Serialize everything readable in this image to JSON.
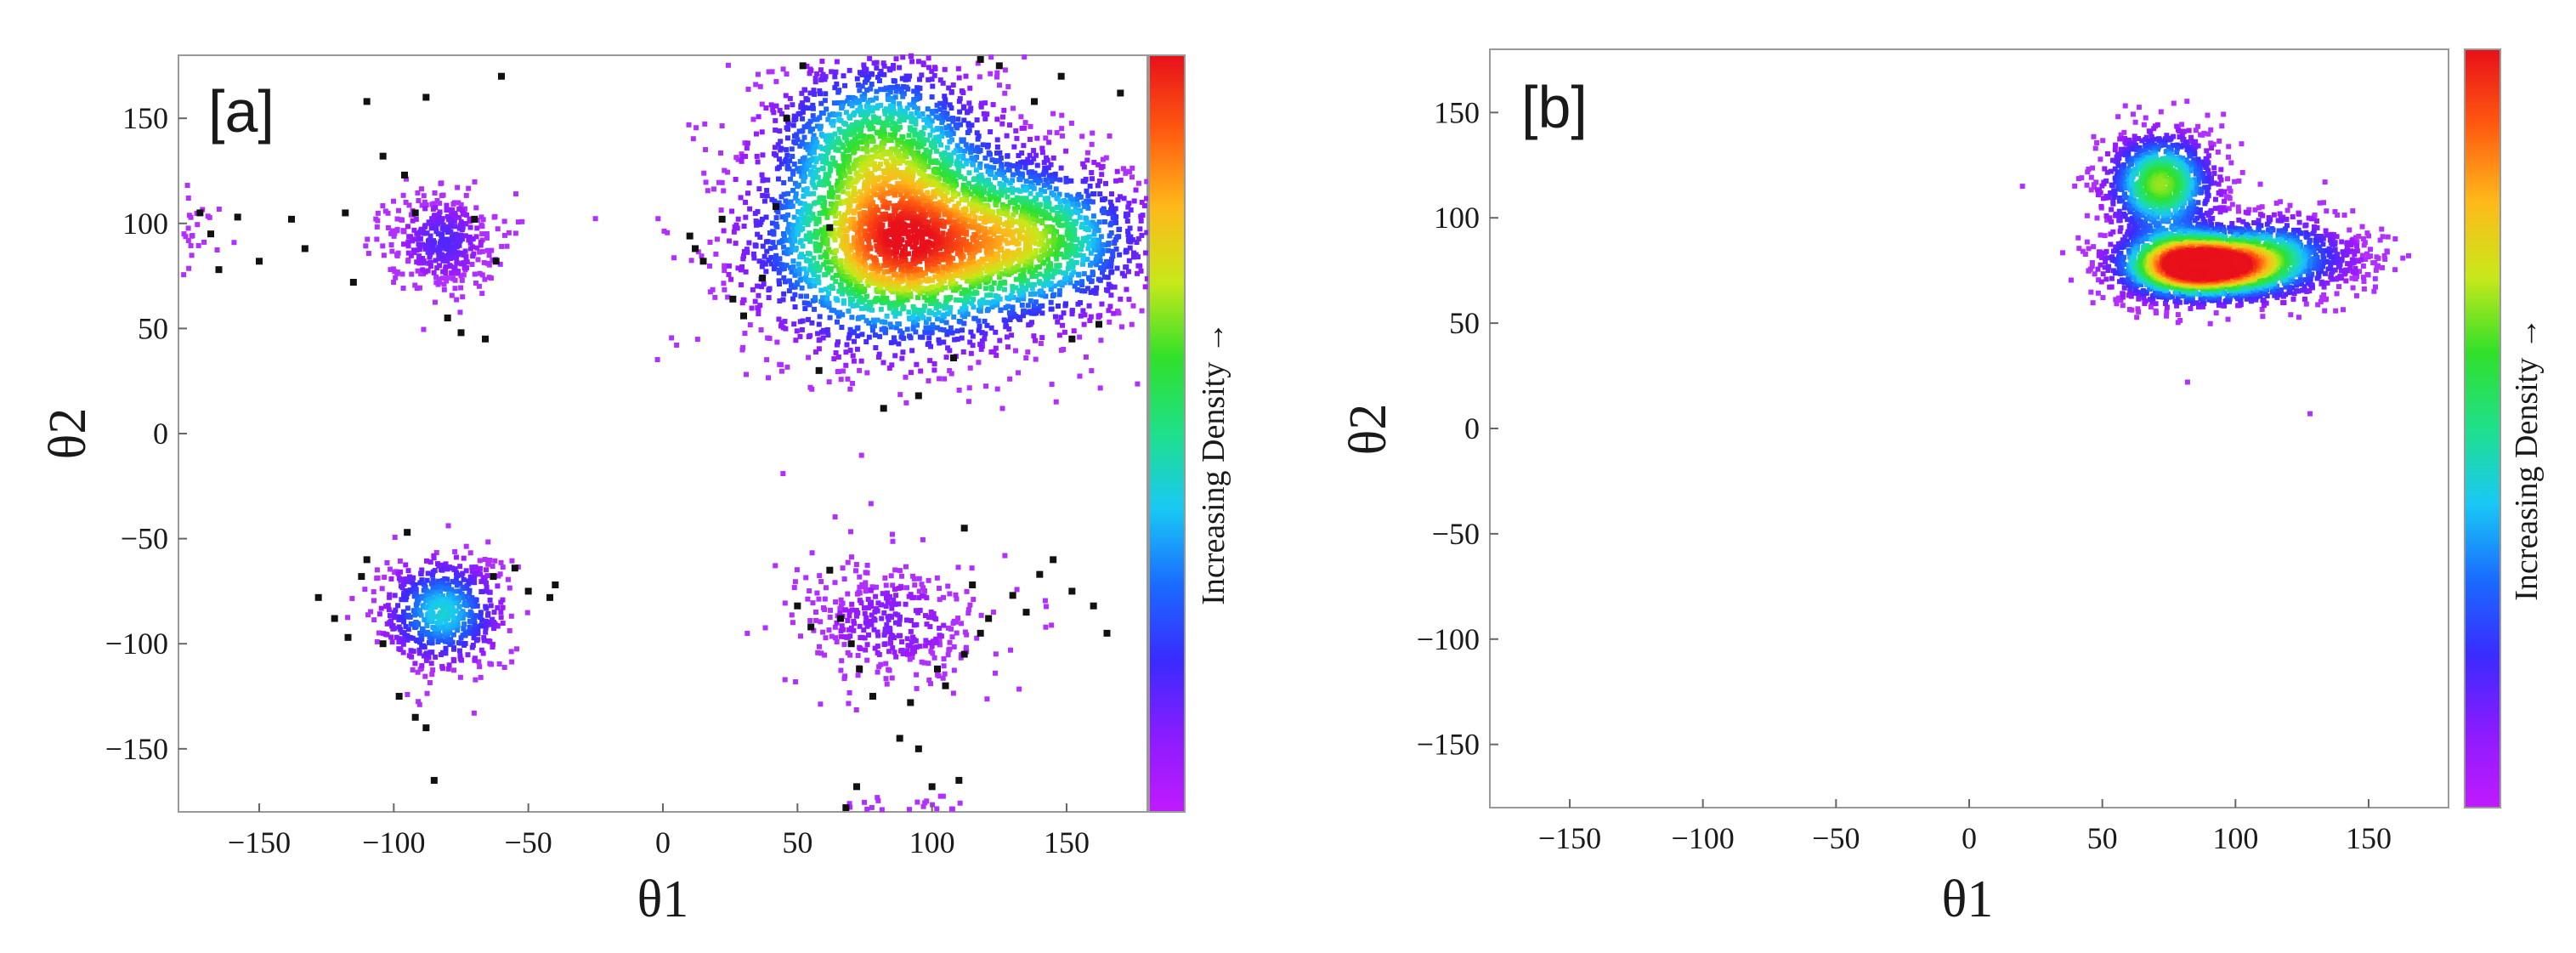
{
  "chart_data": [
    {
      "type": "scatter",
      "panel_label": "[a]",
      "xlabel": "θ1",
      "ylabel": "θ2",
      "xlim": [
        -180,
        180
      ],
      "ylim": [
        -180,
        180
      ],
      "xticks": [
        -150,
        -100,
        -50,
        0,
        50,
        100,
        150
      ],
      "yticks": [
        150,
        100,
        50,
        0,
        -50,
        -100,
        -150
      ],
      "xtick_labels": [
        "−150",
        "−100",
        "−50",
        "0",
        "50",
        "100",
        "150"
      ],
      "ytick_labels": [
        "150",
        "100",
        "50",
        "0",
        "−50",
        "−100",
        "−150"
      ],
      "colorbar_label": "Increasing Density →",
      "colormap": [
        "#c21aff",
        "#8a1cff",
        "#3a2bff",
        "#1a6bff",
        "#19c8f5",
        "#1fe08a",
        "#30e02a",
        "#c8e81a",
        "#ffb81a",
        "#ff5a10",
        "#e8101a"
      ],
      "point_colors": {
        "sparse": "#b030ff",
        "outlier": "#111111"
      },
      "clusters": [
        {
          "center": [
            88,
            90
          ],
          "spread": [
            28,
            26
          ],
          "n": 2600,
          "peak": 1.0
        },
        {
          "center": [
            140,
            92
          ],
          "spread": [
            22,
            20
          ],
          "n": 1200,
          "peak": 0.55
        },
        {
          "center": [
            80,
            140
          ],
          "spread": [
            22,
            22
          ],
          "n": 1100,
          "peak": 0.5
        },
        {
          "center": [
            -82,
            92
          ],
          "spread": [
            10,
            12
          ],
          "n": 420,
          "peak": 0.18
        },
        {
          "center": [
            -82,
            -85
          ],
          "spread": [
            12,
            14
          ],
          "n": 650,
          "peak": 0.45
        },
        {
          "center": [
            85,
            -90
          ],
          "spread": [
            18,
            15
          ],
          "n": 380,
          "peak": 0.12
        },
        {
          "center": [
            -175,
            95
          ],
          "spread": [
            5,
            12
          ],
          "n": 30,
          "peak": 0.05
        },
        {
          "center": [
            90,
            -178
          ],
          "spread": [
            12,
            3
          ],
          "n": 30,
          "peak": 0.05
        }
      ],
      "outliers": [
        [
          -172,
          105
        ],
        [
          -168,
          95
        ],
        [
          -165,
          78
        ],
        [
          -158,
          103
        ],
        [
          -150,
          82
        ],
        [
          -138,
          102
        ],
        [
          -133,
          88
        ],
        [
          -118,
          105
        ],
        [
          -115,
          72
        ],
        [
          -110,
          158
        ],
        [
          -104,
          132
        ],
        [
          -96,
          123
        ],
        [
          -92,
          105
        ],
        [
          -88,
          160
        ],
        [
          -70,
          102
        ],
        [
          -60,
          170
        ],
        [
          -62,
          82
        ],
        [
          -75,
          48
        ],
        [
          -66,
          45
        ],
        [
          -80,
          55
        ],
        [
          -128,
          -78
        ],
        [
          -122,
          -88
        ],
        [
          -117,
          -97
        ],
        [
          -112,
          -68
        ],
        [
          -110,
          -60
        ],
        [
          -104,
          -100
        ],
        [
          -98,
          -125
        ],
        [
          -95,
          -47
        ],
        [
          -92,
          -135
        ],
        [
          -88,
          -140
        ],
        [
          -85,
          -165
        ],
        [
          -63,
          -68
        ],
        [
          -55,
          -64
        ],
        [
          -50,
          -75
        ],
        [
          -42,
          -78
        ],
        [
          -40,
          -72
        ],
        [
          10,
          94
        ],
        [
          12,
          88
        ],
        [
          15,
          82
        ],
        [
          22,
          102
        ],
        [
          26,
          64
        ],
        [
          30,
          56
        ],
        [
          37,
          74
        ],
        [
          42,
          108
        ],
        [
          46,
          150
        ],
        [
          52,
          175
        ],
        [
          58,
          30
        ],
        [
          62,
          98
        ],
        [
          82,
          12
        ],
        [
          95,
          18
        ],
        [
          108,
          36
        ],
        [
          118,
          178
        ],
        [
          125,
          175
        ],
        [
          138,
          158
        ],
        [
          148,
          170
        ],
        [
          152,
          45
        ],
        [
          162,
          52
        ],
        [
          170,
          162
        ],
        [
          50,
          -82
        ],
        [
          55,
          -92
        ],
        [
          62,
          -65
        ],
        [
          66,
          -88
        ],
        [
          70,
          -100
        ],
        [
          73,
          -112
        ],
        [
          78,
          -125
        ],
        [
          92,
          -128
        ],
        [
          95,
          -150
        ],
        [
          102,
          -112
        ],
        [
          105,
          -120
        ],
        [
          112,
          -105
        ],
        [
          115,
          -72
        ],
        [
          118,
          -95
        ],
        [
          121,
          -88
        ],
        [
          130,
          -77
        ],
        [
          135,
          -85
        ],
        [
          140,
          -67
        ],
        [
          145,
          -60
        ],
        [
          152,
          -75
        ],
        [
          160,
          -82
        ],
        [
          165,
          -95
        ],
        [
          68,
          -178
        ],
        [
          72,
          -168
        ],
        [
          88,
          -145
        ],
        [
          100,
          -168
        ],
        [
          110,
          -165
        ],
        [
          112,
          -45
        ]
      ]
    },
    {
      "type": "scatter",
      "panel_label": "[b]",
      "xlabel": "θ1",
      "ylabel": "θ2",
      "xlim": [
        -180,
        180
      ],
      "ylim": [
        -180,
        180
      ],
      "xticks": [
        -150,
        -100,
        -50,
        0,
        50,
        100,
        150
      ],
      "yticks": [
        150,
        100,
        50,
        0,
        -50,
        -100,
        -150
      ],
      "xtick_labels": [
        "−150",
        "−100",
        "−50",
        "0",
        "50",
        "100",
        "150"
      ],
      "ytick_labels": [
        "150",
        "100",
        "50",
        "0",
        "−50",
        "−100",
        "−150"
      ],
      "colorbar_label": "Increasing Density →",
      "colormap": [
        "#c21aff",
        "#8a1cff",
        "#3a2bff",
        "#1a6bff",
        "#19c8f5",
        "#1fe08a",
        "#30e02a",
        "#c8e81a",
        "#ffb81a",
        "#ff5a10",
        "#e8101a"
      ],
      "point_colors": {
        "sparse": "#b030ff",
        "outlier": "#111111"
      },
      "clusters": [
        {
          "center": [
            80,
            78
          ],
          "spread": [
            14,
            9
          ],
          "n": 1700,
          "peak": 1.0
        },
        {
          "center": [
            98,
            77
          ],
          "spread": [
            14,
            8
          ],
          "n": 900,
          "peak": 0.65
        },
        {
          "center": [
            72,
            116
          ],
          "spread": [
            11,
            13
          ],
          "n": 1100,
          "peak": 0.7
        },
        {
          "center": [
            115,
            82
          ],
          "spread": [
            14,
            11
          ],
          "n": 600,
          "peak": 0.4
        },
        {
          "center": [
            140,
            80
          ],
          "spread": [
            10,
            8
          ],
          "n": 120,
          "peak": 0.05
        }
      ],
      "outliers": [],
      "stray_points": [
        [
          20,
          115
        ],
        [
          128,
          7
        ],
        [
          82,
          22
        ],
        [
          160,
          90
        ],
        [
          165,
          82
        ]
      ]
    }
  ]
}
